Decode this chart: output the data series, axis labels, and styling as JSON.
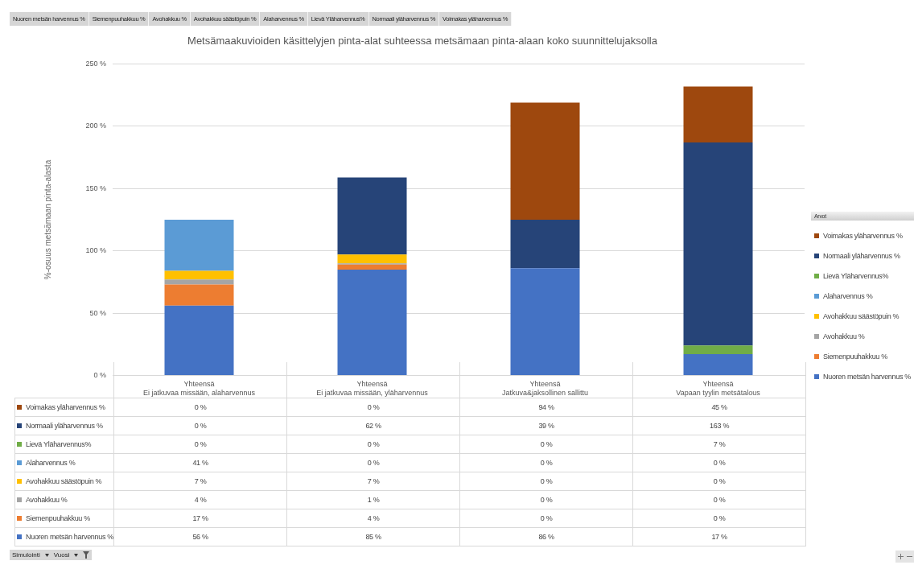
{
  "chart_data": {
    "type": "bar",
    "stacked": true,
    "title": "Metsämaakuvioiden käsittelyjen pinta-alat suhteessa metsämaan pinta-alaan koko suunnittelujaksolla",
    "ylabel": "%-osuus metsämaan pinta-alasta",
    "legend_title": "Arvot",
    "legend": "right",
    "grid": "y",
    "categories": [
      "Yhteensä\nEi jatkuvaa missään, alaharvennus",
      "Yhteensä\nEi jatkuvaa missään, yläharvennus",
      "Yhteensä\nJatkuva&jaksollinen sallittu",
      "Yhteensä\nVapaan tyylin metsätalous"
    ],
    "ylim": [
      0,
      250
    ],
    "yticks": [
      {
        "value": 0,
        "label": "0 %"
      },
      {
        "value": 50,
        "label": "50 %"
      },
      {
        "value": 100,
        "label": "100 %"
      },
      {
        "value": 150,
        "label": "150 %"
      },
      {
        "value": 200,
        "label": "200 %"
      },
      {
        "value": 250,
        "label": "250 %"
      }
    ],
    "series": [
      {
        "name": "Nuoren metsän harvennus %",
        "color": "#4472c4",
        "values": [
          56,
          85,
          86,
          17
        ],
        "value_labels": [
          "56 %",
          "85 %",
          "86 %",
          "17 %"
        ]
      },
      {
        "name": "Siemenpuuhakkuu %",
        "color": "#ed7d31",
        "values": [
          17,
          4,
          0,
          0
        ],
        "value_labels": [
          "17 %",
          "4 %",
          "0 %",
          "0 %"
        ]
      },
      {
        "name": "Avohakkuu %",
        "color": "#a5a5a5",
        "values": [
          4,
          1,
          0,
          0
        ],
        "value_labels": [
          "4 %",
          "1 %",
          "0 %",
          "0 %"
        ]
      },
      {
        "name": "Avohakkuu säästöpuin %",
        "color": "#ffc000",
        "values": [
          7,
          7,
          0,
          0
        ],
        "value_labels": [
          "7 %",
          "7 %",
          "0 %",
          "0 %"
        ]
      },
      {
        "name": "Alaharvennus %",
        "color": "#5b9bd5",
        "values": [
          41,
          0,
          0,
          0
        ],
        "value_labels": [
          "41 %",
          "0 %",
          "0 %",
          "0 %"
        ]
      },
      {
        "name": "Lievä Yläharvennus%",
        "color": "#70ad47",
        "values": [
          0,
          0,
          0,
          7
        ],
        "value_labels": [
          "0 %",
          "0 %",
          "0 %",
          "7 %"
        ]
      },
      {
        "name": "Normaali yläharvennus %",
        "color": "#264478",
        "values": [
          0,
          62,
          39,
          163
        ],
        "value_labels": [
          "0 %",
          "62 %",
          "39 %",
          "163 %"
        ]
      },
      {
        "name": "Voimakas yläharvennus %",
        "color": "#9e480e",
        "values": [
          0,
          0,
          94,
          45
        ],
        "value_labels": [
          "0 %",
          "0 %",
          "94 %",
          "45 %"
        ]
      }
    ],
    "annotations": [
      "Simulointi",
      "Vuosi"
    ]
  }
}
